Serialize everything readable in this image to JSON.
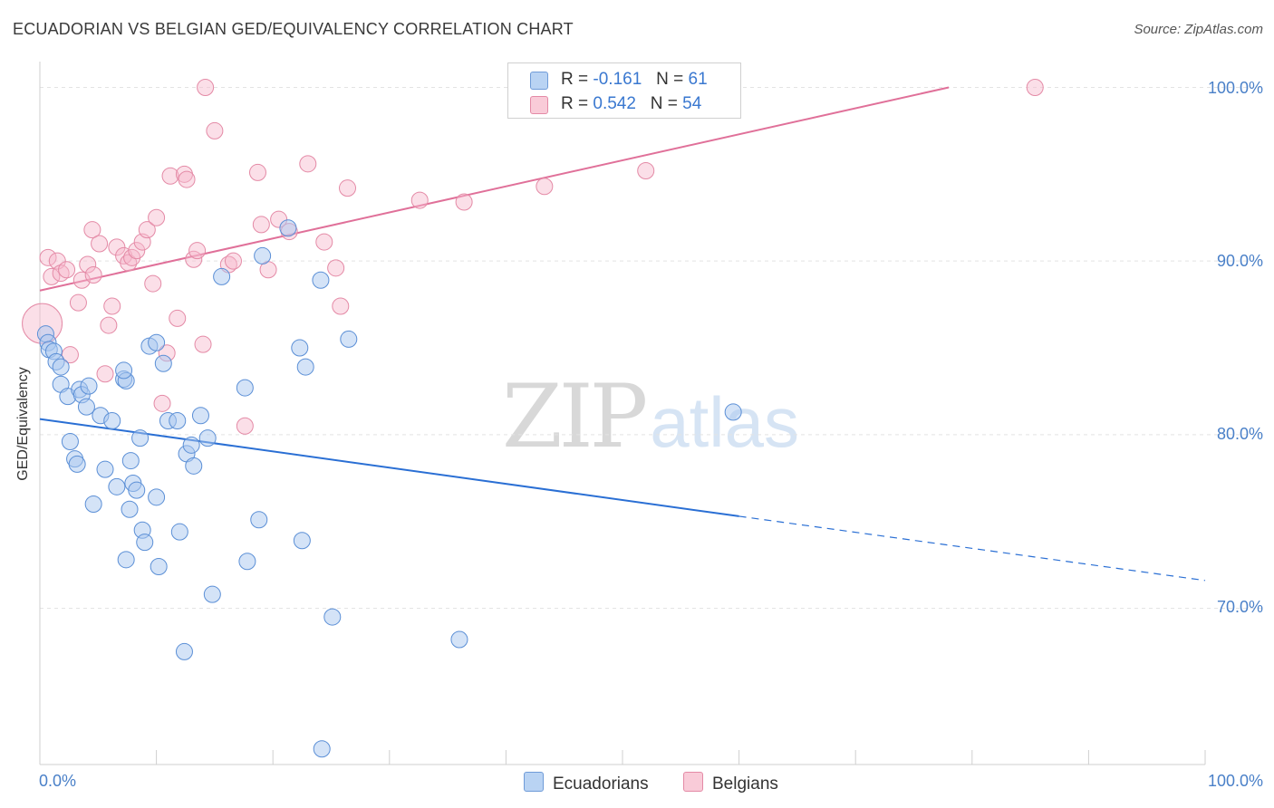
{
  "header": {
    "title": "ECUADORIAN VS BELGIAN GED/EQUIVALENCY CORRELATION CHART",
    "source": "Source: ZipAtlas.com"
  },
  "watermark": {
    "zip": "ZIP",
    "atlas": "atlas"
  },
  "legend": {
    "rows": [
      {
        "r_label": "R =",
        "r_value": "-0.161",
        "n_label": "N =",
        "n_value": "61"
      },
      {
        "r_label": "R =",
        "r_value": "0.542",
        "n_label": "N =",
        "n_value": "54"
      }
    ]
  },
  "colors": {
    "blue_fill": "#a9c8ef",
    "blue_stroke": "#5b8fd6",
    "blue_line": "#2a6fd4",
    "pink_fill": "#f6b9cb",
    "pink_stroke": "#e48aa6",
    "pink_line": "#e07099",
    "grid": "#e3e3e3",
    "tick_text": "#4a80c8"
  },
  "chart_data": {
    "type": "scatter",
    "title": "ECUADORIAN VS BELGIAN GED/EQUIVALENCY CORRELATION CHART",
    "xlabel": "",
    "ylabel": "GED/Equivalency",
    "xlim": [
      0,
      100
    ],
    "ylim": [
      61,
      101.8
    ],
    "x_tick_labels": [
      "0.0%",
      "100.0%"
    ],
    "y_ticks": [
      100,
      90,
      80,
      70
    ],
    "y_tick_labels": [
      "100.0%",
      "90.0%",
      "80.0%",
      "70.0%"
    ],
    "grid": true,
    "legend_position": "bottom-center",
    "series": [
      {
        "name": "Ecuadorians",
        "color": "#a9c8ef",
        "r": -0.161,
        "n": 61,
        "trend": {
          "x0": 0,
          "y0": 80.9,
          "x1": 60,
          "y1": 75.3,
          "dash_x1": 100,
          "dash_y1": 71.6
        },
        "points": [
          [
            0.5,
            85.8
          ],
          [
            0.7,
            85.3
          ],
          [
            0.8,
            84.9
          ],
          [
            1.2,
            84.8
          ],
          [
            1.4,
            84.2
          ],
          [
            1.8,
            83.9
          ],
          [
            1.8,
            82.9
          ],
          [
            2.4,
            82.2
          ],
          [
            2.6,
            79.6
          ],
          [
            3.0,
            78.6
          ],
          [
            3.2,
            78.3
          ],
          [
            3.4,
            82.6
          ],
          [
            3.6,
            82.3
          ],
          [
            4.0,
            81.6
          ],
          [
            4.2,
            82.8
          ],
          [
            4.6,
            76.0
          ],
          [
            5.2,
            81.1
          ],
          [
            5.6,
            78.0
          ],
          [
            6.2,
            80.8
          ],
          [
            6.6,
            77.0
          ],
          [
            7.2,
            83.2
          ],
          [
            7.4,
            83.1
          ],
          [
            7.2,
            83.7
          ],
          [
            7.4,
            72.8
          ],
          [
            7.7,
            75.7
          ],
          [
            7.8,
            78.5
          ],
          [
            8.0,
            77.2
          ],
          [
            8.3,
            76.8
          ],
          [
            8.6,
            79.8
          ],
          [
            8.8,
            74.5
          ],
          [
            9.0,
            73.8
          ],
          [
            9.4,
            85.1
          ],
          [
            10.0,
            85.3
          ],
          [
            10.0,
            76.4
          ],
          [
            10.2,
            72.4
          ],
          [
            10.6,
            84.1
          ],
          [
            11.0,
            80.8
          ],
          [
            11.8,
            80.8
          ],
          [
            12.0,
            74.4
          ],
          [
            12.4,
            67.5
          ],
          [
            12.6,
            78.9
          ],
          [
            13.0,
            79.4
          ],
          [
            13.2,
            78.2
          ],
          [
            13.8,
            81.1
          ],
          [
            14.4,
            79.8
          ],
          [
            14.8,
            70.8
          ],
          [
            15.6,
            89.1
          ],
          [
            17.6,
            82.7
          ],
          [
            17.8,
            72.7
          ],
          [
            18.8,
            75.1
          ],
          [
            19.1,
            90.3
          ],
          [
            21.3,
            91.9
          ],
          [
            22.3,
            85.0
          ],
          [
            22.5,
            73.9
          ],
          [
            22.8,
            83.9
          ],
          [
            24.1,
            88.9
          ],
          [
            24.2,
            61.9
          ],
          [
            25.1,
            69.5
          ],
          [
            26.5,
            85.5
          ],
          [
            36.0,
            68.2
          ],
          [
            59.5,
            81.3
          ]
        ]
      },
      {
        "name": "Belgians",
        "color": "#f6b9cb",
        "r": 0.542,
        "n": 54,
        "trend": {
          "x0": 0,
          "y0": 88.3,
          "x1": 78,
          "y1": 100
        },
        "points": [
          [
            0.2,
            86.4
          ],
          [
            0.7,
            90.2
          ],
          [
            1.0,
            89.1
          ],
          [
            1.5,
            90.0
          ],
          [
            1.8,
            89.3
          ],
          [
            2.3,
            89.5
          ],
          [
            2.6,
            84.6
          ],
          [
            3.3,
            87.6
          ],
          [
            3.6,
            88.9
          ],
          [
            4.1,
            89.8
          ],
          [
            4.5,
            91.8
          ],
          [
            5.1,
            91.0
          ],
          [
            5.6,
            83.5
          ],
          [
            5.9,
            86.3
          ],
          [
            6.2,
            87.4
          ],
          [
            6.6,
            90.8
          ],
          [
            7.2,
            90.3
          ],
          [
            7.6,
            89.9
          ],
          [
            7.9,
            90.2
          ],
          [
            8.3,
            90.6
          ],
          [
            8.8,
            91.1
          ],
          [
            9.2,
            91.8
          ],
          [
            9.7,
            88.7
          ],
          [
            10.0,
            92.5
          ],
          [
            10.5,
            81.8
          ],
          [
            10.9,
            84.7
          ],
          [
            11.2,
            94.9
          ],
          [
            11.8,
            86.7
          ],
          [
            12.4,
            95.0
          ],
          [
            12.6,
            94.7
          ],
          [
            13.2,
            90.1
          ],
          [
            13.5,
            90.6
          ],
          [
            14.0,
            85.2
          ],
          [
            14.2,
            100.0
          ],
          [
            15.0,
            97.5
          ],
          [
            16.2,
            89.8
          ],
          [
            16.6,
            90.0
          ],
          [
            17.6,
            80.5
          ],
          [
            18.7,
            95.1
          ],
          [
            19.0,
            92.1
          ],
          [
            19.6,
            89.5
          ],
          [
            20.5,
            92.4
          ],
          [
            21.4,
            91.7
          ],
          [
            23.0,
            95.6
          ],
          [
            24.4,
            91.1
          ],
          [
            25.4,
            89.6
          ],
          [
            25.8,
            87.4
          ],
          [
            26.4,
            94.2
          ],
          [
            32.6,
            93.5
          ],
          [
            36.4,
            93.4
          ],
          [
            43.3,
            94.3
          ],
          [
            52.0,
            95.2
          ],
          [
            85.4,
            100.0
          ],
          [
            4.6,
            89.2
          ]
        ]
      }
    ]
  }
}
